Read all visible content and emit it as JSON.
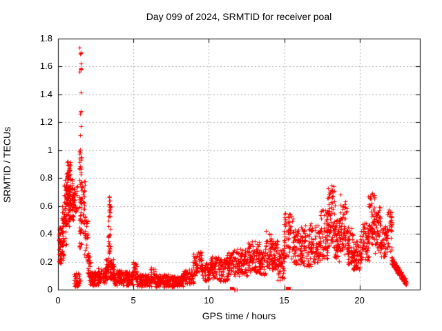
{
  "title": "Day 099 of 2024, SRMTID for receiver poal",
  "x_axis": {
    "label": "GPS time / hours",
    "range": [
      0,
      24
    ],
    "tick_labels": [
      "0",
      "5",
      "10",
      "15",
      "20"
    ],
    "tick_values": [
      0,
      5,
      10,
      15,
      20
    ]
  },
  "y_axis": {
    "label": "SRMTID / TECUs",
    "range": [
      0,
      1.8
    ],
    "tick_labels": [
      "0",
      "0.2",
      "0.4",
      "0.6",
      "0.8",
      "1",
      "1.2",
      "1.4",
      "1.6",
      "1.8"
    ],
    "tick_values": [
      0,
      0.2,
      0.4,
      0.6,
      0.8,
      1.0,
      1.2,
      1.4,
      1.6,
      1.8
    ]
  },
  "colors": {
    "points": "#ff0000",
    "grid": "#aaaaaa",
    "axis": "#000000",
    "background": "#ffffff"
  },
  "chart_data": {
    "type": "scatter",
    "marker": "plus",
    "series_name": "SRMTID",
    "grid": "dotted major gridlines, mirrored inward ticks on all four borders",
    "legend_position": "none",
    "xlim": [
      0,
      24
    ],
    "ylim": [
      0,
      1.8
    ],
    "clusters_format": "[x_start_hours, x_end_hours, y_low_TECUs, y_high_TECUs, point_count]",
    "clusters": [
      [
        0.02,
        0.2,
        0.17,
        0.45,
        40
      ],
      [
        0.1,
        0.35,
        0.2,
        0.35,
        35
      ],
      [
        0.25,
        0.55,
        0.3,
        0.6,
        45
      ],
      [
        0.4,
        0.75,
        0.45,
        0.85,
        60
      ],
      [
        0.55,
        0.85,
        0.6,
        0.92,
        55
      ],
      [
        0.75,
        1.05,
        0.5,
        0.8,
        50
      ],
      [
        1.0,
        1.3,
        0.55,
        0.75,
        30
      ],
      [
        1.05,
        1.5,
        0.02,
        0.12,
        45
      ],
      [
        1.4,
        1.55,
        0.3,
        1.0,
        55
      ],
      [
        1.43,
        1.52,
        1.0,
        1.82,
        17
      ],
      [
        1.55,
        1.8,
        0.4,
        0.8,
        35
      ],
      [
        1.75,
        2.0,
        0.2,
        0.5,
        30
      ],
      [
        1.95,
        2.15,
        0.1,
        0.25,
        25
      ],
      [
        2.05,
        2.7,
        0.03,
        0.13,
        80
      ],
      [
        2.6,
        3.2,
        0.04,
        0.16,
        70
      ],
      [
        3.1,
        3.35,
        0.06,
        0.22,
        30
      ],
      [
        3.33,
        3.5,
        0.15,
        0.67,
        40
      ],
      [
        3.4,
        3.7,
        0.06,
        0.22,
        45
      ],
      [
        3.65,
        4.3,
        0.03,
        0.14,
        80
      ],
      [
        4.3,
        5.0,
        0.03,
        0.13,
        80
      ],
      [
        4.95,
        5.25,
        0.06,
        0.2,
        30
      ],
      [
        5.2,
        6.2,
        0.02,
        0.11,
        110
      ],
      [
        6.1,
        6.45,
        0.05,
        0.16,
        30
      ],
      [
        6.4,
        7.3,
        0.02,
        0.11,
        100
      ],
      [
        7.2,
        8.3,
        0.02,
        0.1,
        110
      ],
      [
        8.25,
        9.0,
        0.04,
        0.15,
        80
      ],
      [
        8.95,
        9.55,
        0.1,
        0.28,
        60
      ],
      [
        9.5,
        10.1,
        0.06,
        0.19,
        60
      ],
      [
        10.05,
        10.7,
        0.08,
        0.24,
        65
      ],
      [
        10.65,
        11.25,
        0.06,
        0.22,
        65
      ],
      [
        11.2,
        11.95,
        0.09,
        0.28,
        75
      ],
      [
        11.9,
        12.6,
        0.1,
        0.3,
        75
      ],
      [
        12.55,
        13.35,
        0.12,
        0.35,
        80
      ],
      [
        13.3,
        13.75,
        0.1,
        0.28,
        50
      ],
      [
        13.75,
        14.2,
        0.15,
        0.42,
        55
      ],
      [
        14.15,
        14.6,
        0.12,
        0.35,
        55
      ],
      [
        14.55,
        14.98,
        0.06,
        0.3,
        50
      ],
      [
        14.95,
        15.65,
        0.22,
        0.55,
        70
      ],
      [
        15.6,
        16.2,
        0.18,
        0.45,
        65
      ],
      [
        16.15,
        16.8,
        0.15,
        0.46,
        65
      ],
      [
        16.75,
        17.4,
        0.18,
        0.48,
        70
      ],
      [
        17.35,
        17.9,
        0.22,
        0.58,
        65
      ],
      [
        17.85,
        18.35,
        0.3,
        0.76,
        70
      ],
      [
        18.3,
        18.7,
        0.2,
        0.5,
        55
      ],
      [
        18.7,
        19.2,
        0.24,
        0.64,
        60
      ],
      [
        19.15,
        19.55,
        0.16,
        0.45,
        55
      ],
      [
        19.5,
        20.1,
        0.14,
        0.35,
        65
      ],
      [
        20.05,
        20.6,
        0.2,
        0.48,
        60
      ],
      [
        20.55,
        21.0,
        0.3,
        0.7,
        60
      ],
      [
        20.95,
        21.4,
        0.26,
        0.6,
        55
      ],
      [
        21.35,
        21.85,
        0.22,
        0.46,
        55
      ],
      [
        21.8,
        22.15,
        0.26,
        0.58,
        40
      ]
    ],
    "tail_segment": {
      "x0": 22.1,
      "y0": 0.21,
      "x1": 23.1,
      "y1": 0.05,
      "half_width": 0.025,
      "n": 130
    },
    "extra_points": [
      [
        18.72,
        0.68
      ]
    ],
    "square_points": [
      [
        11.48,
        0.01
      ],
      [
        11.56,
        0.01
      ],
      [
        15.22,
        0.01
      ],
      [
        15.3,
        0.01
      ]
    ],
    "zero_plus_points": [
      [
        11.7,
        0.0
      ],
      [
        11.78,
        0.0
      ],
      [
        11.88,
        0.0
      ]
    ],
    "seed": 1234
  }
}
